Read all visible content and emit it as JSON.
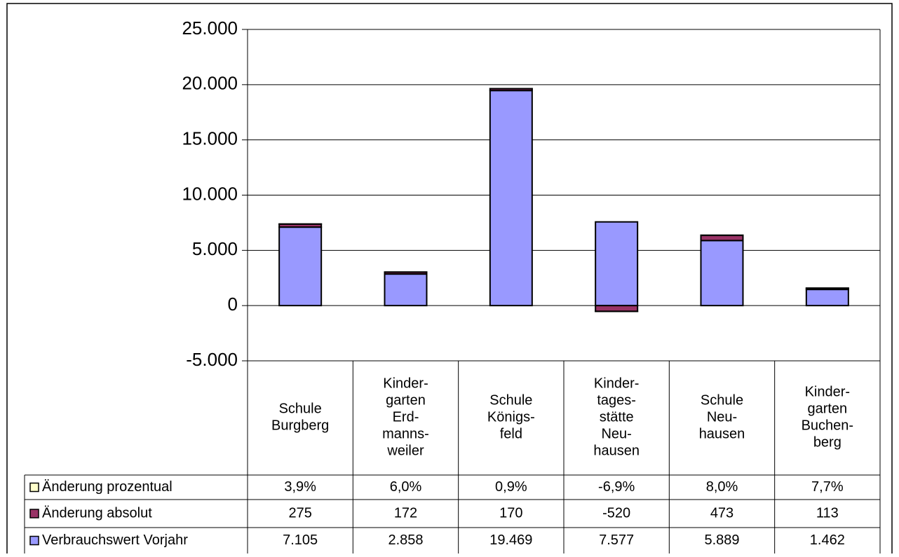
{
  "chart_data": {
    "type": "stacked_bar",
    "categories": [
      [
        "Schule",
        "Burgberg"
      ],
      [
        "Kinder-",
        "garten",
        "Erd-",
        "manns-",
        "weiler"
      ],
      [
        "Schule",
        "Königs-",
        "feld"
      ],
      [
        "Kinder-",
        "tages-",
        "stätte",
        "Neu-",
        "hausen"
      ],
      [
        "Schule",
        "Neu-",
        "hausen"
      ],
      [
        "Kinder-",
        "garten",
        "Buchen-",
        "berg"
      ]
    ],
    "series": [
      {
        "name": "Verbrauchswert Vorjahr",
        "color": "#9999ff",
        "values": [
          7105,
          2858,
          19469,
          7577,
          5889,
          1462
        ],
        "value_labels": [
          "7.105",
          "2.858",
          "19.469",
          "7.577",
          "5.889",
          "1.462"
        ]
      },
      {
        "name": "Änderung absolut",
        "color": "#993366",
        "values": [
          275,
          172,
          170,
          -520,
          473,
          113
        ]
      },
      {
        "name": "Änderung prozentual",
        "color": "#ffffcc",
        "values": [
          3.9,
          6.0,
          0.9,
          -6.9,
          8.0,
          7.7
        ],
        "value_labels": [
          "3,9%",
          "6,0%",
          "0,9%",
          "-6,9%",
          "8,0%",
          "7,7%"
        ]
      }
    ],
    "ylim": [
      -5000,
      25000
    ],
    "yticks": [
      {
        "value": -5000,
        "label": "-5.000"
      },
      0,
      {
        "value": 5000,
        "label": "5.000"
      },
      {
        "value": 10000,
        "label": "10.000"
      },
      {
        "value": 15000,
        "label": "15.000"
      },
      {
        "value": 20000,
        "label": "20.000"
      },
      {
        "value": 25000,
        "label": "25.000"
      }
    ],
    "grid": true
  }
}
